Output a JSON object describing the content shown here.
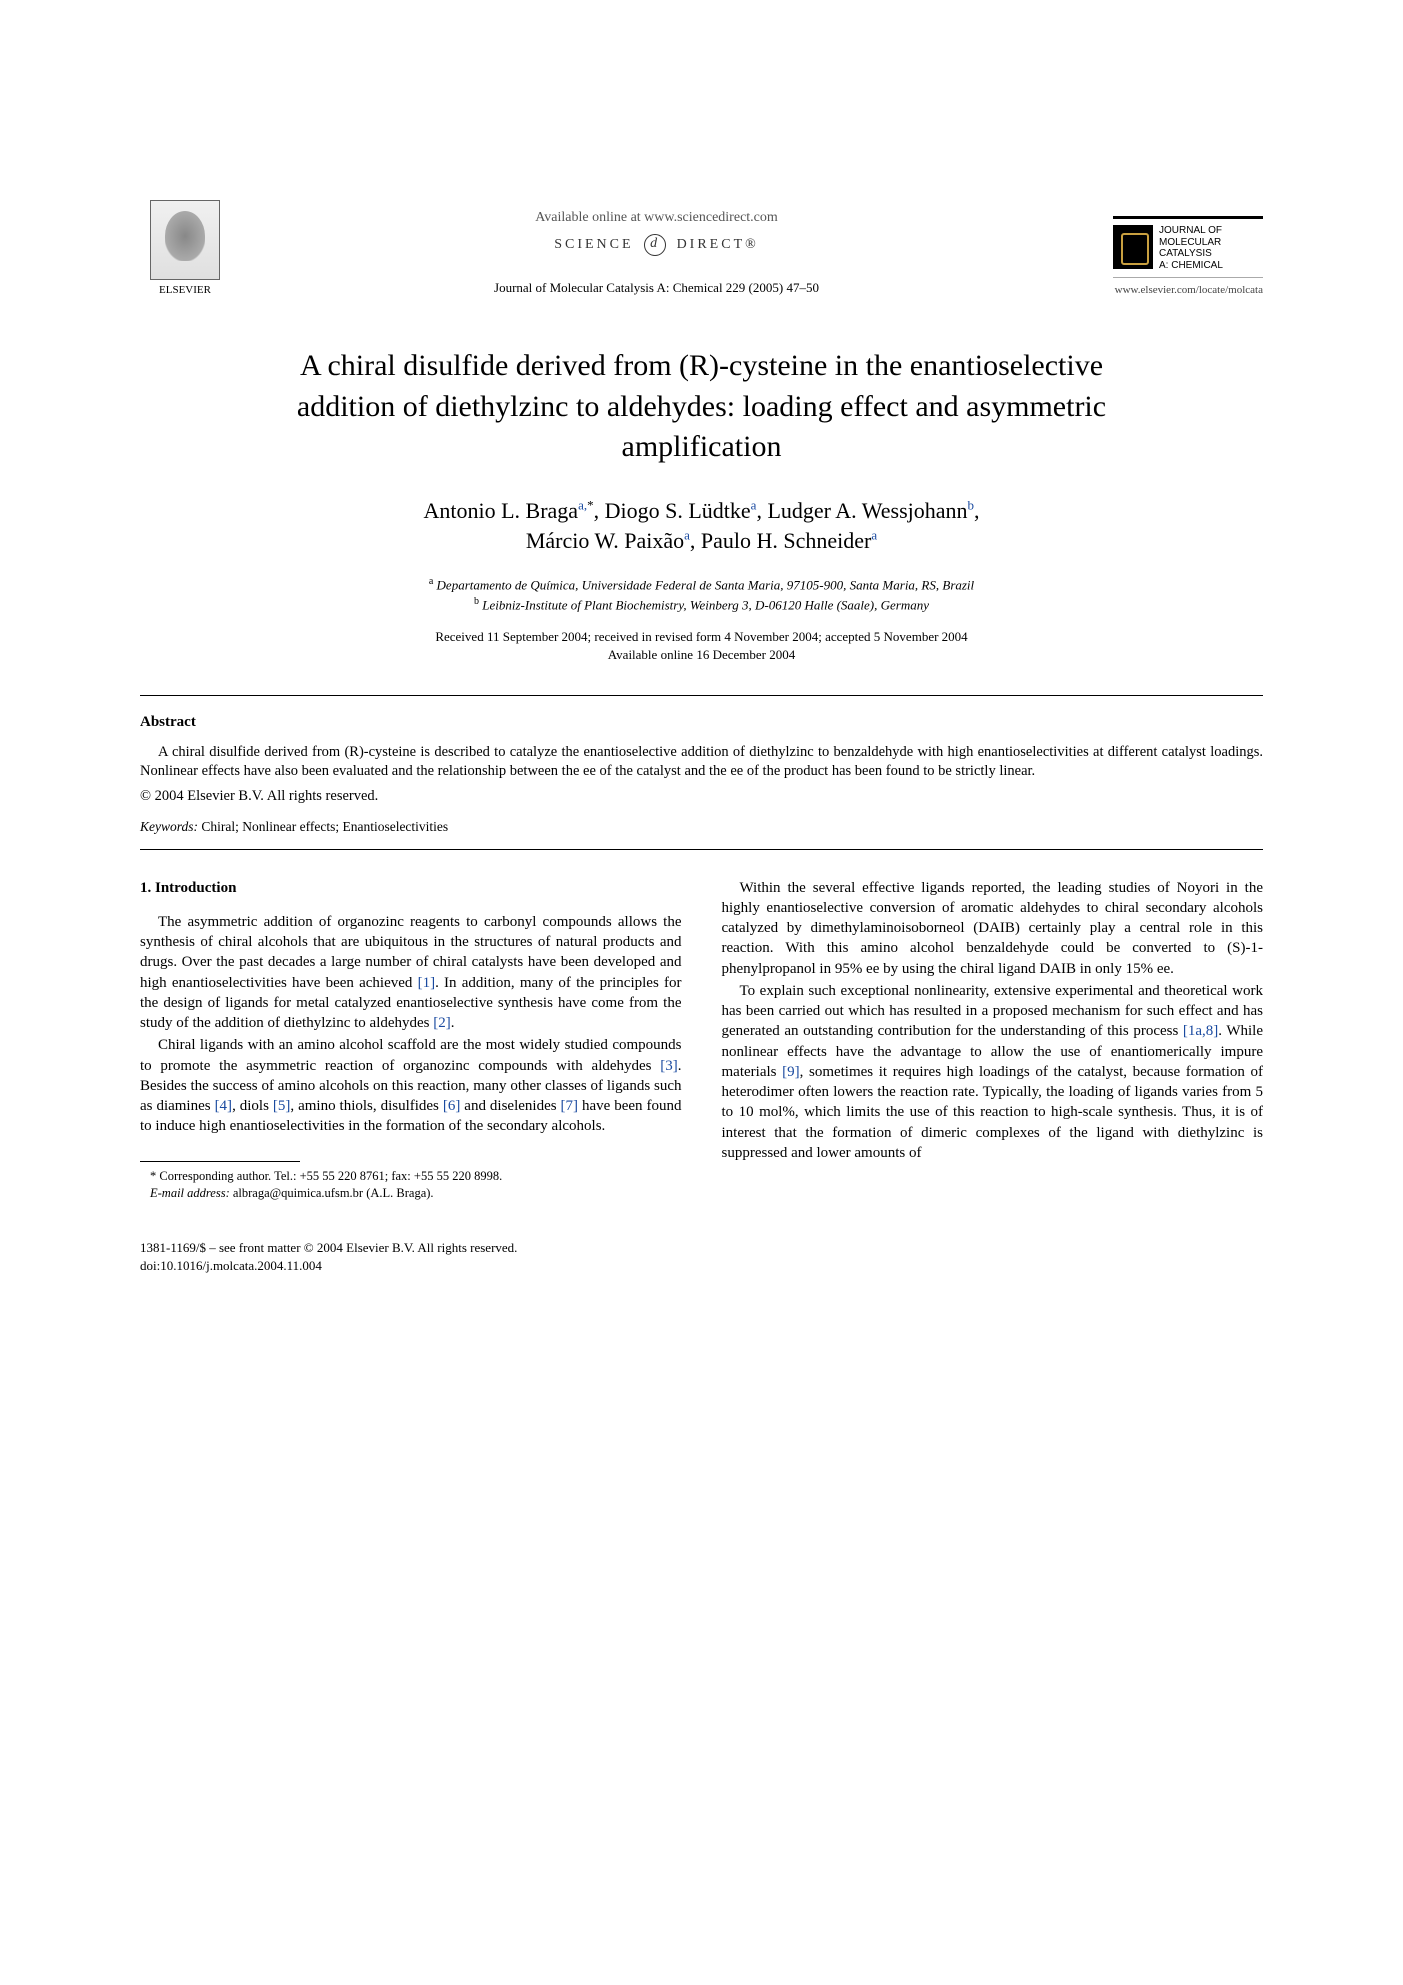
{
  "header": {
    "elsevier_label": "ELSEVIER",
    "available_online": "Available online at www.sciencedirect.com",
    "science_left": "SCIENCE",
    "science_right": "DIRECT®",
    "journal_ref": "Journal of Molecular Catalysis A: Chemical 229 (2005) 47–50",
    "journal_box_line1": "JOURNAL OF",
    "journal_box_line2": "MOLECULAR",
    "journal_box_line3": "CATALYSIS",
    "journal_box_line4": "A: CHEMICAL",
    "journal_url": "www.elsevier.com/locate/molcata"
  },
  "title": "A chiral disulfide derived from (R)-cysteine in the enantioselective addition of diethylzinc to aldehydes: loading effect and asymmetric amplification",
  "authors_line1_parts": {
    "a1": "Antonio L. Braga",
    "a1_sup": "a,",
    "a1_ast": "*",
    "sep1": ", ",
    "a2": "Diogo S. Lüdtke",
    "a2_sup": "a",
    "sep2": ", ",
    "a3": "Ludger A. Wessjohann",
    "a3_sup": "b",
    "sep3": ","
  },
  "authors_line2_parts": {
    "a4": "Márcio W. Paixão",
    "a4_sup": "a",
    "sep4": ", ",
    "a5": "Paulo H. Schneider",
    "a5_sup": "a"
  },
  "affiliations": {
    "a_sup": "a",
    "a_text": " Departamento de Química, Universidade Federal de Santa Maria, 97105-900, Santa Maria, RS, Brazil",
    "b_sup": "b",
    "b_text": " Leibniz-Institute of Plant Biochemistry, Weinberg 3, D-06120 Halle (Saale), Germany"
  },
  "dates": {
    "line1": "Received 11 September 2004; received in revised form 4 November 2004; accepted 5 November 2004",
    "line2": "Available online 16 December 2004"
  },
  "abstract": {
    "heading": "Abstract",
    "body": "A chiral disulfide derived from (R)-cysteine is described to catalyze the enantioselective addition of diethylzinc to benzaldehyde with high enantioselectivities at different catalyst loadings. Nonlinear effects have also been evaluated and the relationship between the ee of the catalyst and the ee of the product has been found to be strictly linear.",
    "copyright": "© 2004 Elsevier B.V. All rights reserved."
  },
  "keywords": {
    "label": "Keywords:",
    "text": " Chiral; Nonlinear effects; Enantioselectivities"
  },
  "section1": {
    "heading": "1.  Introduction",
    "p1_a": "The asymmetric addition of organozinc reagents to carbonyl compounds allows the synthesis of chiral alcohols that are ubiquitous in the structures of natural products and drugs. Over the past decades a large number of chiral catalysts have been developed and high enantioselectivities have been achieved ",
    "p1_cite1": "[1]",
    "p1_b": ". In addition, many of the principles for the design of ligands for metal catalyzed enantioselective synthesis have come from the study of the addition of diethylzinc to aldehydes ",
    "p1_cite2": "[2]",
    "p1_c": ".",
    "p2_a": "Chiral ligands with an amino alcohol scaffold are the most widely studied compounds to promote the asymmetric reaction of organozinc compounds with aldehydes ",
    "p2_cite1": "[3]",
    "p2_b": ". Besides the success of amino alcohols on this reaction, many other classes of ligands such as diamines ",
    "p2_cite2": "[4]",
    "p2_c": ", diols ",
    "p2_cite3": "[5]",
    "p2_d": ", amino thiols, disulfides ",
    "p2_cite4": "[6]",
    "p2_e": " and diselenides ",
    "p2_cite5": "[7]",
    "p2_f": " have been found to induce high enantioselectivities in the formation of the secondary alcohols.",
    "p3": "Within the several effective ligands reported, the leading studies of Noyori in the highly enantioselective conversion of aromatic aldehydes to chiral secondary alcohols catalyzed by dimethylaminoisoborneol (DAIB) certainly play a central role in this reaction. With this amino alcohol benzaldehyde could be converted to (S)-1-phenylpropanol in 95% ee by using the chiral ligand DAIB in only 15% ee.",
    "p4_a": "To explain such exceptional nonlinearity, extensive experimental and theoretical work has been carried out which has resulted in a proposed mechanism for such effect and has generated an outstanding contribution for the understanding of this process ",
    "p4_cite1": "[1a,8]",
    "p4_b": ". While nonlinear effects have the advantage to allow the use of enantiomerically impure materials ",
    "p4_cite2": "[9]",
    "p4_c": ", sometimes it requires high loadings of the catalyst, because formation of heterodimer often lowers the reaction rate. Typically, the loading of ligands varies from 5 to 10 mol%, which limits the use of this reaction to high-scale synthesis. Thus, it is of interest that the formation of dimeric complexes of the ligand with diethylzinc is suppressed and lower amounts of"
  },
  "footnote": {
    "corr": "* Corresponding author. Tel.: +55 55 220 8761; fax: +55 55 220 8998.",
    "email_label": "E-mail address:",
    "email_value": " albraga@quimica.ufsm.br (A.L. Braga)."
  },
  "bottom": {
    "line1": "1381-1169/$ – see front matter © 2004 Elsevier B.V. All rights reserved.",
    "line2": "doi:10.1016/j.molcata.2004.11.004"
  },
  "colors": {
    "cite": "#1a4aa0",
    "text": "#000000",
    "background": "#ffffff"
  }
}
